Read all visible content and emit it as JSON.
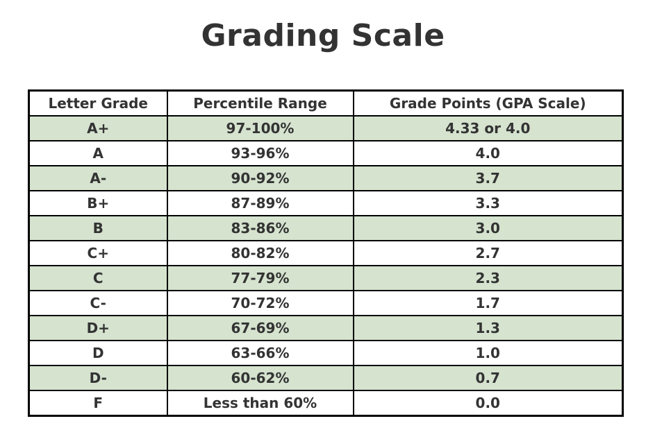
{
  "title": "Grading Scale",
  "colors": {
    "row_green": "#d5e3cf",
    "row_white": "#ffffff",
    "border": "#000000",
    "text": "#333333"
  },
  "chart_data": {
    "type": "table",
    "title": "Grading Scale",
    "columns": [
      "Letter Grade",
      "Percentile Range",
      "Grade Points (GPA Scale)"
    ],
    "rows": [
      [
        "A+",
        "97-100%",
        "4.33 or 4.0"
      ],
      [
        "A",
        "93-96%",
        "4.0"
      ],
      [
        "A-",
        "90-92%",
        "3.7"
      ],
      [
        "B+",
        "87-89%",
        "3.3"
      ],
      [
        "B",
        "83-86%",
        "3.0"
      ],
      [
        "C+",
        "80-82%",
        "2.7"
      ],
      [
        "C",
        "77-79%",
        "2.3"
      ],
      [
        "C-",
        "70-72%",
        "1.7"
      ],
      [
        "D+",
        "67-69%",
        "1.3"
      ],
      [
        "D",
        "63-66%",
        "1.0"
      ],
      [
        "D-",
        "60-62%",
        "0.7"
      ],
      [
        "F",
        "Less than 60%",
        "0.0"
      ]
    ],
    "layout": {
      "header_background": "#ffffff",
      "shaded_row_background": "#d5e3cf",
      "shading_pattern": "alternate, starting with first data row",
      "grid": "all cell borders, black"
    }
  }
}
